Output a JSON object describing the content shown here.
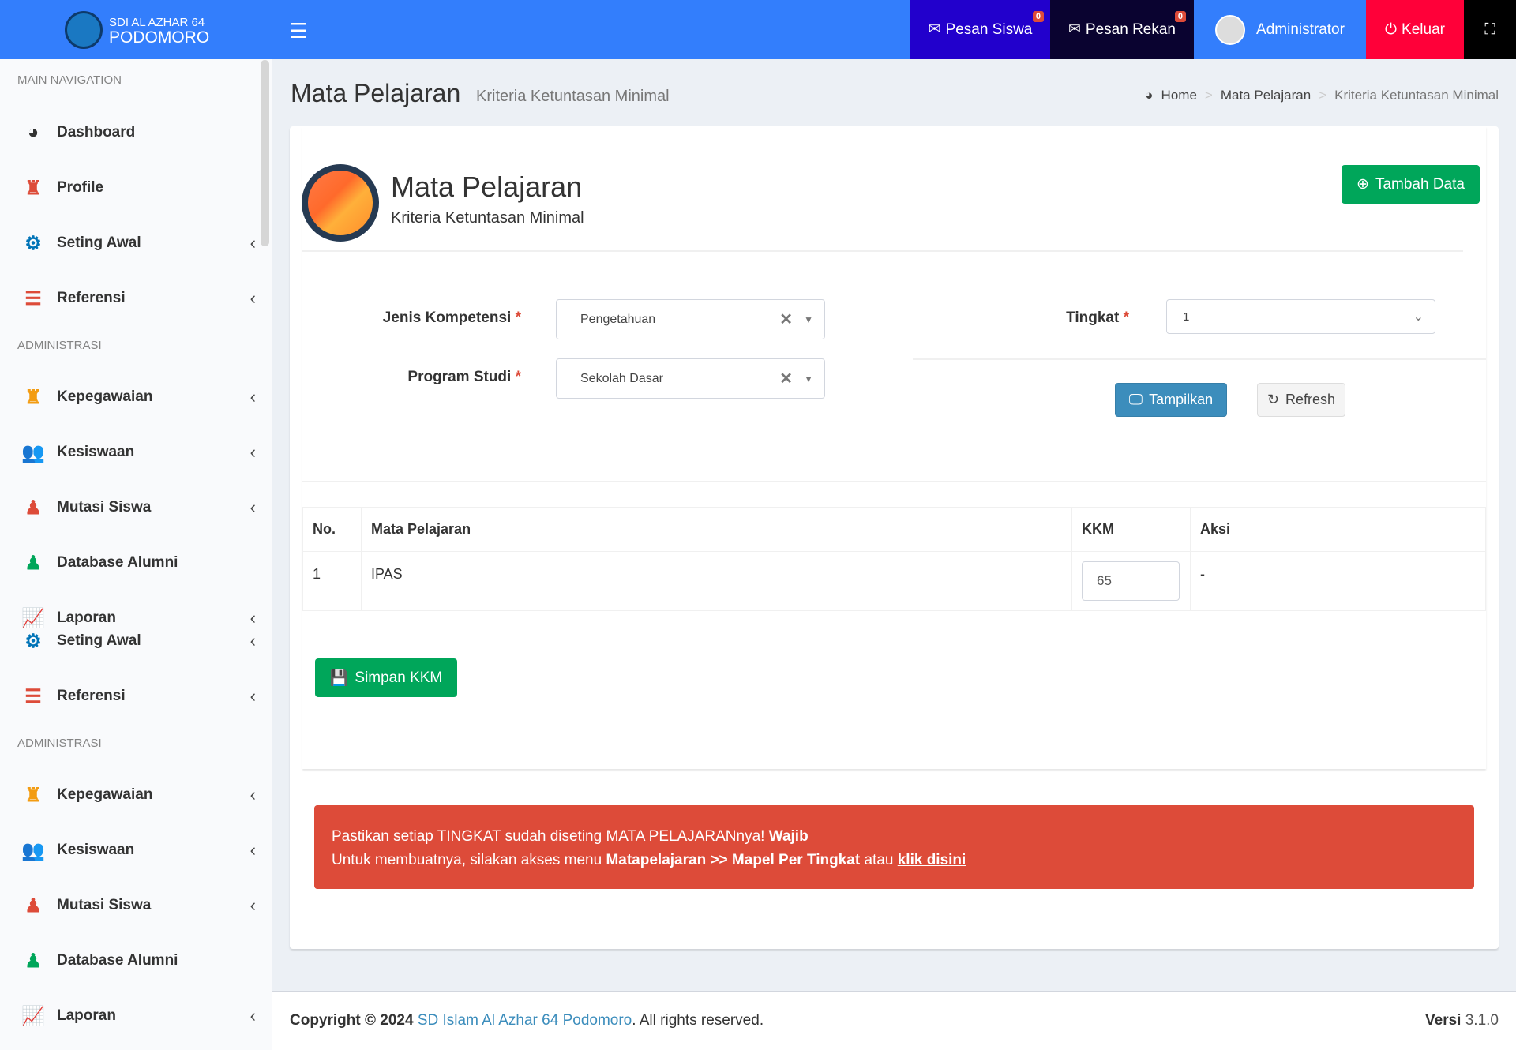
{
  "header": {
    "brand_top": "SDI AL AZHAR 64",
    "brand_bottom": "PODOMORO",
    "pesan_siswa": "Pesan Siswa",
    "pesan_siswa_count": "0",
    "pesan_rekan": "Pesan Rekan",
    "pesan_rekan_count": "0",
    "user": "Administrator",
    "logout": "Keluar",
    "colors": {
      "bar": "#337efc",
      "pesan_siswa": "#2200cc",
      "pesan_rekan": "#0a0330",
      "logout": "#ff0039"
    }
  },
  "sidebar": {
    "main_header": "MAIN NAVIGATION",
    "admin_header": "ADMINISTRASI",
    "items": [
      {
        "label": "Dashboard",
        "icon": "dashboard-icon"
      },
      {
        "label": "Profile",
        "icon": "user-secret-icon"
      },
      {
        "label": "Seting Awal",
        "icon": "gear-icon"
      },
      {
        "label": "Referensi",
        "icon": "list-icon"
      },
      {
        "label": "Kepegawaian",
        "icon": "user-secret-icon"
      },
      {
        "label": "Kesiswaan",
        "icon": "users-icon"
      },
      {
        "label": "Mutasi Siswa",
        "icon": "user-md-icon"
      },
      {
        "label": "Database Alumni",
        "icon": "user-md-icon"
      },
      {
        "label": "Laporan",
        "icon": "line-chart-icon"
      }
    ]
  },
  "page": {
    "title": "Mata Pelajaran",
    "subtitle": "Kriteria Ketuntasan Minimal",
    "breadcrumb": [
      "Home",
      "Mata Pelajaran",
      "Kriteria Ketuntasan Minimal"
    ]
  },
  "card": {
    "title": "Mata Pelajaran",
    "subtitle": "Kriteria Ketuntasan Minimal",
    "add_button": "Tambah Data"
  },
  "form": {
    "jenis_label": "Jenis Kompetensi",
    "jenis_value": "Pengetahuan",
    "prodi_label": "Program Studi",
    "prodi_value": "Sekolah Dasar",
    "tingkat_label": "Tingkat",
    "tingkat_value": "1",
    "required": "*",
    "show_button": "Tampilkan",
    "refresh_button": "Refresh"
  },
  "table": {
    "headers": [
      "No.",
      "Mata Pelajaran",
      "KKM",
      "Aksi"
    ],
    "rows": [
      {
        "no": "1",
        "mapel": "IPAS",
        "kkm": "65",
        "aksi": "-"
      }
    ]
  },
  "save_button": "Simpan KKM",
  "alert": {
    "line1": "Pastikan setiap TINGKAT sudah diseting MATA PELAJARANnya!",
    "line1_bold": "Wajib",
    "line2": "Untuk membuatnya, silakan akses menu",
    "line2_bold": "Matapelajaran >> Mapel Per Tingkat",
    "line2_mid": "atau",
    "link": "klik disini",
    "color": "#dd4b39"
  },
  "footer": {
    "copyright": "Copyright © 2024",
    "org": "SD Islam Al Azhar 64 Podomoro",
    "rights": ". All rights reserved.",
    "version_label": "Versi",
    "version": "3.1.0"
  }
}
